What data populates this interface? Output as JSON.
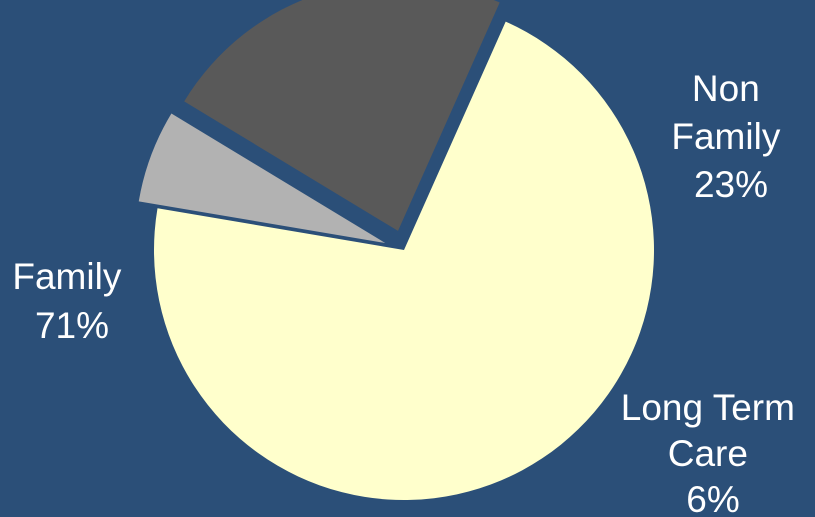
{
  "chart_data": {
    "type": "pie",
    "title": "",
    "background_color": "#2b4f78",
    "exploded_slices": [
      "Long Term Care",
      "Non Family"
    ],
    "slices": [
      {
        "name": "Family",
        "label_lines": [
          "Family",
          "71%"
        ],
        "percent": 71,
        "color": "#ffffcc"
      },
      {
        "name": "Long Term Care",
        "label_lines": [
          "Long Term",
          "Care",
          "6%"
        ],
        "percent": 6,
        "color": "#b2b2b2"
      },
      {
        "name": "Non Family",
        "label_lines": [
          "Non",
          "Family",
          "23%"
        ],
        "percent": 23,
        "color": "#595959"
      }
    ]
  }
}
